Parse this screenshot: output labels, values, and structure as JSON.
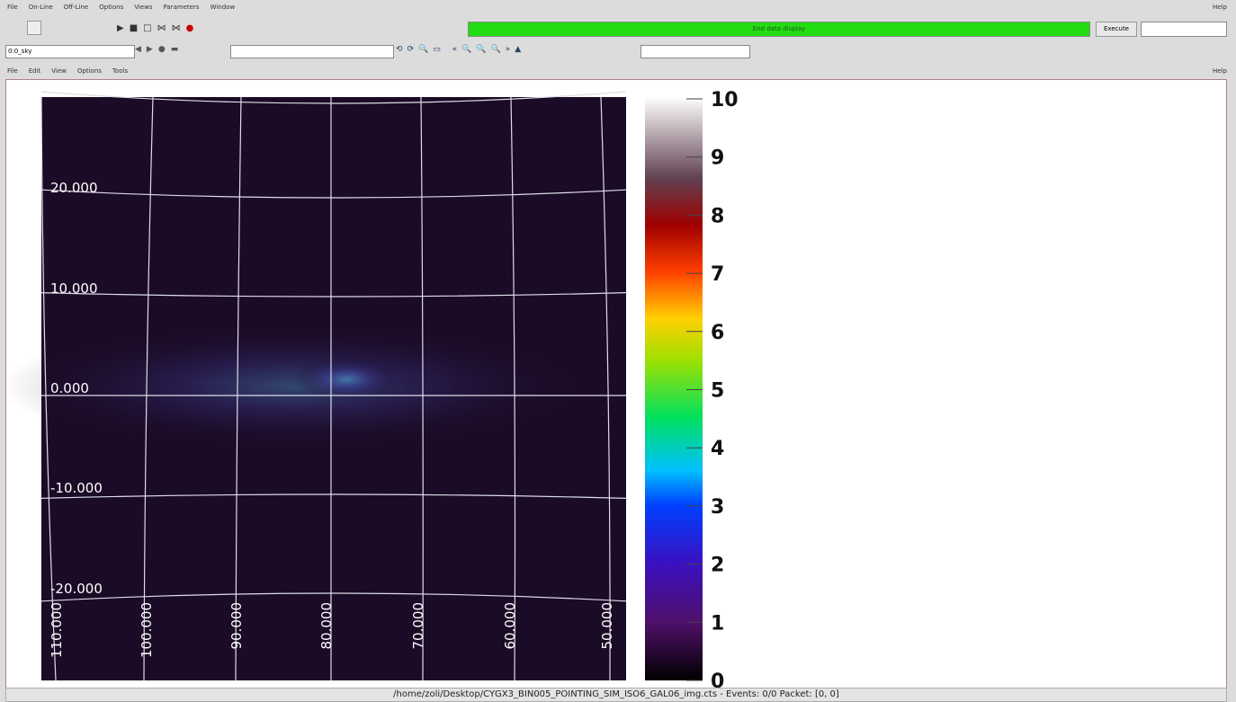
{
  "menubar": {
    "items": [
      "File",
      "On-Line",
      "Off-Line",
      "Options",
      "Views",
      "Parameters",
      "Window"
    ],
    "help": "Help"
  },
  "toolbar": {
    "status": "End data display",
    "execute": "Execute",
    "combo": "0:0_sky"
  },
  "submenu": {
    "items": [
      "File",
      "Edit",
      "View",
      "Options",
      "Tools"
    ],
    "help": "Help"
  },
  "plot": {
    "lat_labels": [
      "20.000",
      "10.000",
      "0.000",
      "-10.000",
      "-20.000"
    ],
    "lon_labels": [
      "110.000",
      "100.000",
      "90.000",
      "80.000",
      "70.000",
      "60.000",
      "50.000"
    ]
  },
  "colorbar": {
    "ticks": [
      0,
      1,
      2,
      3,
      4,
      5,
      6,
      7,
      8,
      9,
      10
    ]
  },
  "statusbar": {
    "text": "/home/zoli/Desktop/CYGX3_BIN005_POINTING_SIM_ISO6_GAL06_img.cts - Events: 0/0  Packet: [0, 0]"
  }
}
